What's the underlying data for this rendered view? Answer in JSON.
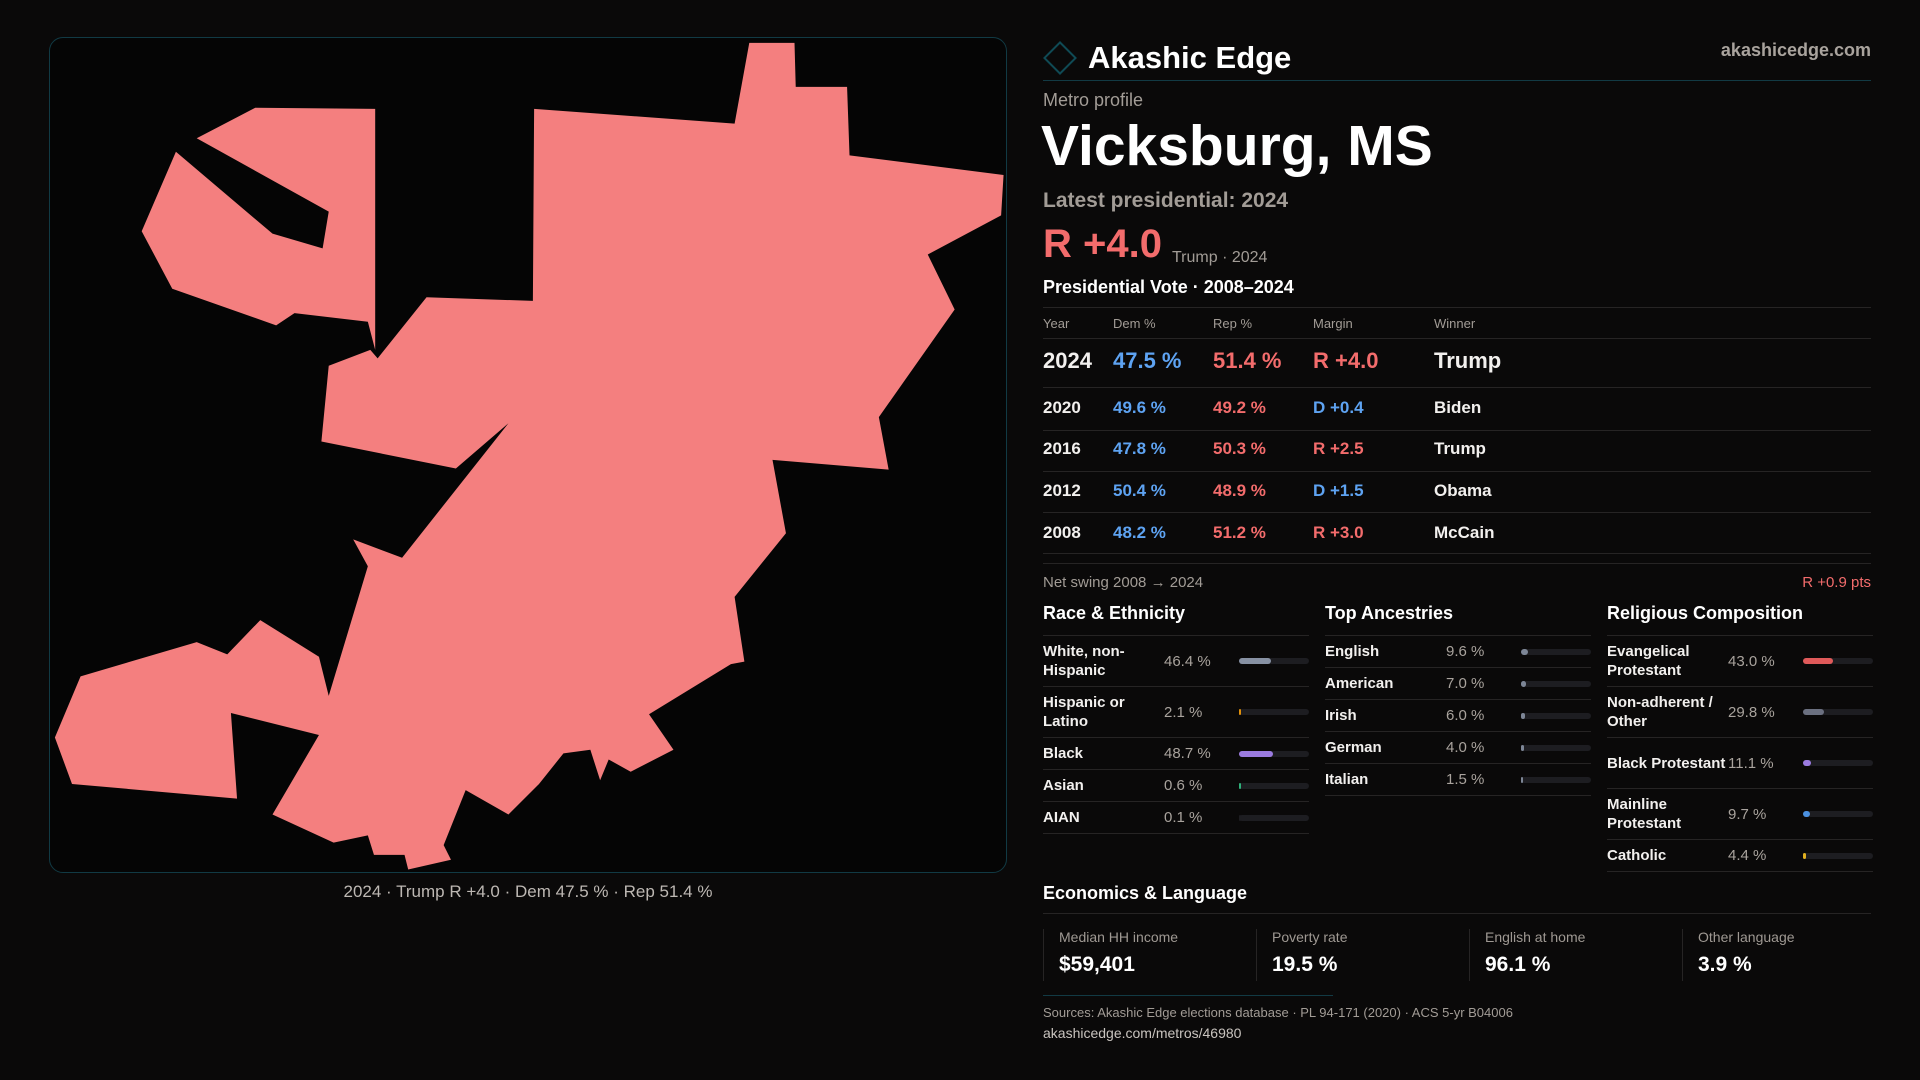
{
  "brand": {
    "name": "Akashic Edge",
    "site": "akashicedge.com",
    "logo_icon": "diamond-icon"
  },
  "map": {
    "caption": "2024 · Trump R +4.0 · Dem 47.5 % · Rep 51.4 %",
    "fill_color": "#f47f7f"
  },
  "profile": {
    "kicker": "Metro profile",
    "title": "Vicksburg, MS",
    "latest": "Latest presidential: 2024",
    "margin": "R +4.0",
    "margin_sub": "Trump · 2024"
  },
  "votes": {
    "title": "Presidential Vote · 2008–2024",
    "headers": [
      "Year",
      "Dem %",
      "Rep %",
      "Margin",
      "Winner"
    ],
    "rows": [
      {
        "year": "2024",
        "dem": "47.5 %",
        "rep": "51.4 %",
        "margin": "R +4.0",
        "party": "R",
        "winner": "Trump"
      },
      {
        "year": "2020",
        "dem": "49.6 %",
        "rep": "49.2 %",
        "margin": "D +0.4",
        "party": "D",
        "winner": "Biden"
      },
      {
        "year": "2016",
        "dem": "47.8 %",
        "rep": "50.3 %",
        "margin": "R +2.5",
        "party": "R",
        "winner": "Trump"
      },
      {
        "year": "2012",
        "dem": "50.4 %",
        "rep": "48.9 %",
        "margin": "D +1.5",
        "party": "D",
        "winner": "Obama"
      },
      {
        "year": "2008",
        "dem": "48.2 %",
        "rep": "51.2 %",
        "margin": "R +3.0",
        "party": "R",
        "winner": "McCain"
      }
    ],
    "swing_label": "Net swing 2008 → 2024",
    "swing_value": "R +0.9 pts"
  },
  "sections": [
    {
      "title": "Race & Ethnicity",
      "items": [
        {
          "label": "White, non-Hispanic",
          "value": "46.4 %",
          "pct": 46.4,
          "color": "#8791a3",
          "lines": 2
        },
        {
          "label": "Hispanic or Latino",
          "value": "2.1 %",
          "pct": 2.1,
          "color": "#e0900a",
          "lines": 2
        },
        {
          "label": "Black",
          "value": "48.7 %",
          "pct": 48.7,
          "color": "#9b7be0",
          "lines": 1
        },
        {
          "label": "Asian",
          "value": "0.6 %",
          "pct": 0.6,
          "color": "#2fb07a",
          "lines": 1
        },
        {
          "label": "AIAN",
          "value": "0.1 %",
          "pct": 0.1,
          "color": "#1d1d21",
          "lines": 1
        }
      ]
    },
    {
      "title": "Top Ancestries",
      "items": [
        {
          "label": "English",
          "value": "9.6 %",
          "pct": 9.6,
          "color": "#7d8696",
          "lines": 1
        },
        {
          "label": "American",
          "value": "7.0 %",
          "pct": 7.0,
          "color": "#7d8696",
          "lines": 1
        },
        {
          "label": "Irish",
          "value": "6.0 %",
          "pct": 6.0,
          "color": "#7d8696",
          "lines": 1
        },
        {
          "label": "German",
          "value": "4.0 %",
          "pct": 4.0,
          "color": "#7d8696",
          "lines": 1
        },
        {
          "label": "Italian",
          "value": "1.5 %",
          "pct": 1.5,
          "color": "#7d8696",
          "lines": 1
        }
      ]
    },
    {
      "title": "Religious Composition",
      "items": [
        {
          "label": "Evangelical Protestant",
          "value": "43.0 %",
          "pct": 43.0,
          "color": "#e05a5a",
          "lines": 2
        },
        {
          "label": "Non-adherent / Other",
          "value": "29.8 %",
          "pct": 29.8,
          "color": "#6b7080",
          "lines": 2
        },
        {
          "label": "Black Protestant",
          "value": "11.1 %",
          "pct": 11.1,
          "color": "#9b7be0",
          "lines": 2
        },
        {
          "label": "Mainline Protestant",
          "value": "9.7 %",
          "pct": 9.7,
          "color": "#4a90e0",
          "lines": 2
        },
        {
          "label": "Catholic",
          "value": "4.4 %",
          "pct": 4.4,
          "color": "#e0b020",
          "lines": 1
        }
      ]
    }
  ],
  "economics": {
    "title": "Economics & Language",
    "cells": [
      {
        "label": "Median HH income",
        "value": "$59,401"
      },
      {
        "label": "Poverty rate",
        "value": "19.5 %"
      },
      {
        "label": "English at home",
        "value": "96.1 %"
      },
      {
        "label": "Other language",
        "value": "3.9 %"
      }
    ]
  },
  "footer": {
    "sources": "Sources: Akashic Edge elections database · PL 94-171 (2020) · ACS 5-yr B04006",
    "link": "akashicedge.com/metros/46980"
  },
  "colors": {
    "dem": "#5ea3f2",
    "rep": "#f36c6c",
    "accent": "#0f4a55",
    "background": "#0a0909"
  }
}
